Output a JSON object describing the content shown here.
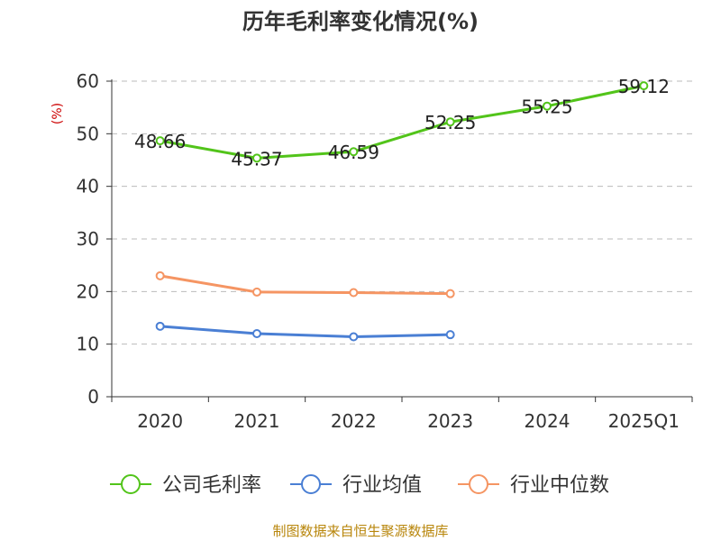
{
  "title": "历年毛利率变化情况(%)",
  "source": "制图数据来自恒生聚源数据库",
  "colors": {
    "gross_margin": "#52c41a",
    "industry_avg": "#4a7fd4",
    "industry_median": "#f59563",
    "grid": "#bbbbbb",
    "axis": "#333333",
    "ylabel": "#cc0000",
    "source": "#b8860b"
  },
  "chart_data": {
    "type": "line",
    "title": "历年毛利率变化情况(%)",
    "ylabel": "(%)",
    "xlabel": "",
    "categories": [
      "2020",
      "2021",
      "2022",
      "2023",
      "2024",
      "2025Q1"
    ],
    "ylim": [
      0,
      60
    ],
    "yticks": [
      0,
      10,
      20,
      30,
      40,
      50,
      60
    ],
    "grid": true,
    "legend_position": "bottom",
    "series": [
      {
        "name": "公司毛利率",
        "values": [
          48.66,
          45.37,
          46.59,
          52.25,
          55.25,
          59.12
        ],
        "labels": [
          "48.66",
          "45.37",
          "46.59",
          "52.25",
          "55.25",
          "59.12"
        ],
        "color": "#52c41a"
      },
      {
        "name": "行业均值",
        "values": [
          13.4,
          12.0,
          11.4,
          11.8,
          null,
          null
        ],
        "color": "#4a7fd4"
      },
      {
        "name": "行业中位数",
        "values": [
          23.0,
          19.9,
          19.8,
          19.6,
          null,
          null
        ],
        "color": "#f59563"
      }
    ]
  }
}
